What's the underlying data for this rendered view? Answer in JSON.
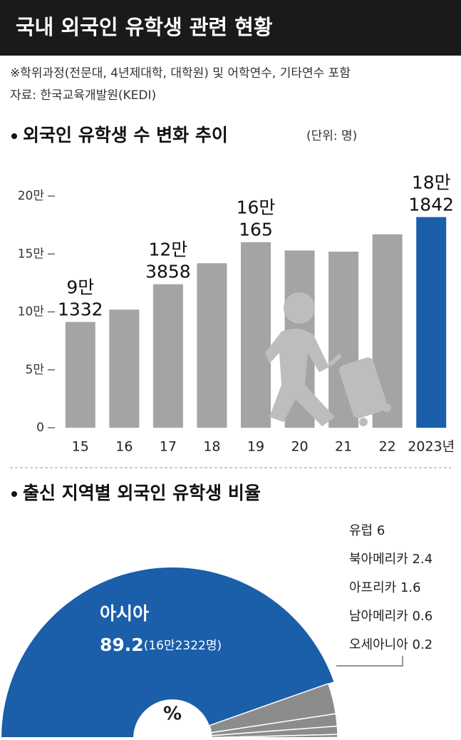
{
  "header": {
    "title": "국내 외국인 유학생 관련 현황",
    "note": "※학위과정(전문대, 4년제대학, 대학원) 및 어학연수, 기타연수 포함",
    "source": "자료: 한국교육개발원(KEDI)"
  },
  "chart_data": [
    {
      "type": "bar",
      "title": "외국인 유학생 수 변화 추이",
      "unit": "(단위: 명)",
      "categories": [
        "15",
        "16",
        "17",
        "18",
        "19",
        "20",
        "21",
        "22",
        "2023년"
      ],
      "values": [
        9.1332,
        10.2,
        12.3858,
        14.2,
        16.0165,
        15.3,
        15.2,
        16.7,
        18.1842
      ],
      "value_labels": [
        [
          "9만",
          "1332"
        ],
        null,
        [
          "12만",
          "3858"
        ],
        null,
        [
          "16만",
          "165"
        ],
        null,
        null,
        null,
        [
          "18만",
          "1842"
        ]
      ],
      "colors": [
        "#a4a4a4",
        "#a4a4a4",
        "#a4a4a4",
        "#a4a4a4",
        "#a4a4a4",
        "#a4a4a4",
        "#a4a4a4",
        "#a4a4a4",
        "#1b5ea9"
      ],
      "ylim": [
        0,
        20
      ],
      "yticks": [
        0,
        {
          "value": 5,
          "label": "5만"
        },
        {
          "value": 10,
          "label": "10만"
        },
        {
          "value": 15,
          "label": "15만"
        },
        {
          "value": 20,
          "label": "20만"
        }
      ]
    },
    {
      "type": "pie",
      "title": "출신 지역별 외국인 유학생 비율",
      "center_label": "%",
      "categories": [
        "아시아",
        "유럽",
        "북아메리카",
        "아프리카",
        "남아메리카",
        "오세아니아"
      ],
      "values": [
        89.2,
        6,
        2.4,
        1.6,
        0.6,
        0.2
      ],
      "annotation": "(16만2322명)",
      "colors": [
        "#1b5ea9",
        "#8c8c8c",
        "#8c8c8c",
        "#8c8c8c",
        "#8c8c8c",
        "#8c8c8c"
      ]
    }
  ]
}
